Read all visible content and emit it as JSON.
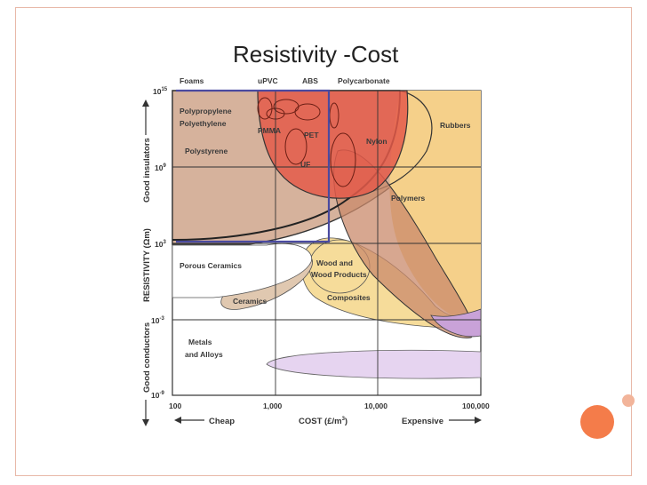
{
  "slide": {
    "title": "Resistivity -Cost",
    "colors": {
      "border": "#e8b8a8",
      "accent_circle": "#f47c4a",
      "accent_small": "#f2b49a"
    }
  },
  "chart_data": {
    "type": "scatter",
    "title": "Resistivity -Cost",
    "xlabel": "COST (£/m³)",
    "ylabel": "RESISTIVITY (Ωm)",
    "xscale": "log",
    "yscale": "log",
    "xlim": [
      100,
      100000
    ],
    "ylim": [
      1e-09,
      1000000000000000.0
    ],
    "x_ticks": [
      "100",
      "1,000",
      "10,000",
      "100,000"
    ],
    "y_ticks": [
      "10¹⁵",
      "10⁹",
      "10³",
      "10⁻³",
      "10⁻⁹"
    ],
    "x_arrow_left": "Cheap",
    "x_arrow_right": "Expensive",
    "y_arrow_top": "Good insulators",
    "y_arrow_bottom": "Good conductors",
    "families": [
      {
        "name": "Foams",
        "color": "#d6b29c"
      },
      {
        "name": "Rubbers",
        "color": "#f5d08a"
      },
      {
        "name": "Polymers",
        "color": "#c98a6b"
      },
      {
        "name": "Porous Ceramics",
        "color": "#ffffff"
      },
      {
        "name": "Wood and Wood Products",
        "color": "#f6dc9a"
      },
      {
        "name": "Ceramics",
        "color": "#f6dc9a"
      },
      {
        "name": "Composites",
        "color": "#f6dc9a"
      },
      {
        "name": "Metals and Alloys",
        "color": "#e6d4f0"
      }
    ],
    "materials": [
      "uPVC",
      "ABS",
      "Polycarbonate",
      "Polypropylene",
      "Polyethylene",
      "PMMA",
      "PET",
      "Polystyrene",
      "UF",
      "Nylon"
    ],
    "selection_box": {
      "x_max": 3000,
      "y_min": 1000,
      "color": "#4a4aa0"
    }
  }
}
